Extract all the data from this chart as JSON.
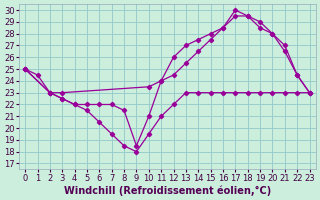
{
  "bg_color": "#cceedd",
  "grid_color": "#99cccc",
  "line_color": "#990099",
  "xmin": 0,
  "xmax": 23,
  "ymin": 17,
  "ymax": 30,
  "line1_x": [
    0,
    1,
    2,
    3,
    4,
    5,
    6,
    7,
    8,
    9,
    10,
    11,
    12,
    13,
    14,
    15,
    16,
    17,
    18,
    19,
    20,
    21,
    22,
    23
  ],
  "line1_y": [
    25.0,
    24.5,
    23.0,
    22.5,
    22.0,
    21.5,
    20.5,
    19.5,
    18.5,
    18.0,
    19.5,
    21.0,
    22.0,
    23.0,
    23.0,
    23.0,
    23.0,
    23.0,
    23.0,
    23.0,
    23.0,
    23.0,
    23.0,
    23.0
  ],
  "line2_x": [
    0,
    2,
    3,
    4,
    5,
    6,
    7,
    8,
    9,
    10,
    11,
    12,
    13,
    14,
    15,
    16,
    17,
    18,
    19,
    20,
    21,
    22,
    23
  ],
  "line2_y": [
    25.0,
    23.0,
    22.5,
    22.0,
    22.0,
    22.0,
    22.0,
    21.5,
    18.5,
    21.0,
    24.0,
    26.0,
    27.0,
    27.5,
    28.0,
    28.5,
    30.0,
    29.5,
    29.0,
    28.0,
    26.5,
    24.5,
    23.0
  ],
  "line3_x": [
    0,
    2,
    3,
    10,
    11,
    12,
    13,
    14,
    15,
    16,
    17,
    18,
    19,
    20,
    21,
    22,
    23
  ],
  "line3_y": [
    25.0,
    23.0,
    23.0,
    23.5,
    24.0,
    24.5,
    25.5,
    26.5,
    27.5,
    28.5,
    29.5,
    29.5,
    28.5,
    28.0,
    27.0,
    24.5,
    23.0
  ],
  "xlabel": "Windchill (Refroidissement éolien,°C)",
  "xlabel_fontsize": 7.0,
  "tick_fontsize": 6.0
}
